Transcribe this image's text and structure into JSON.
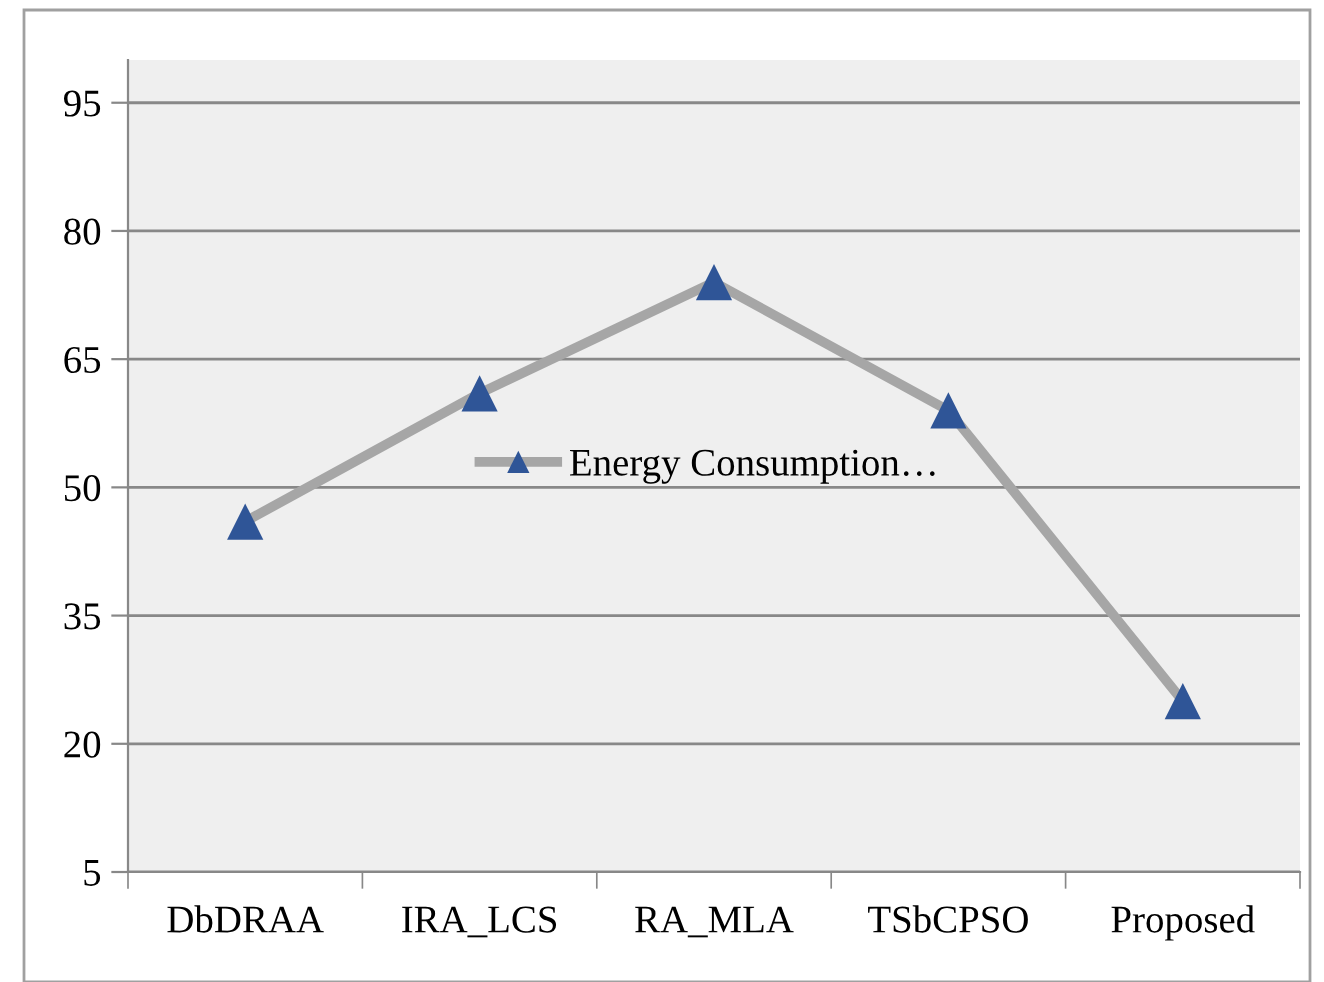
{
  "chart_data": {
    "type": "line",
    "categories": [
      "DbDRAA",
      "IRA_LCS",
      "RA_MLA",
      "TSbCPSO",
      "Proposed"
    ],
    "series": [
      {
        "name": "Energy Consumption…",
        "color": "#a6a6a6",
        "colors": [
          "#2f5597",
          "#2f5597",
          "#2f5597",
          "#2f5597",
          "#2f5597"
        ],
        "values": [
          46,
          61,
          74,
          59,
          25
        ]
      }
    ],
    "ylim": [
      5,
      100
    ],
    "yticks": [
      5,
      20,
      35,
      50,
      65,
      80,
      95
    ],
    "grid": "y",
    "legend": "center left",
    "marker": "triangle",
    "line_style": "solid"
  }
}
